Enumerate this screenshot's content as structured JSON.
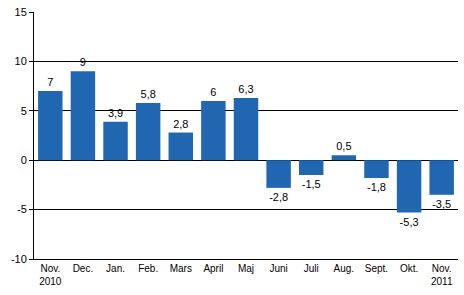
{
  "chart_data": {
    "type": "bar",
    "categories": [
      "Nov.\n2010",
      "Dec.",
      "Jan.",
      "Feb.",
      "Mars",
      "April",
      "Maj",
      "Juni",
      "Juli",
      "Aug.",
      "Sept.",
      "Okt.",
      "Nov.\n2011"
    ],
    "values": [
      7,
      9,
      3.9,
      5.8,
      2.8,
      6,
      6.3,
      -2.8,
      -1.5,
      0.5,
      -1.8,
      -5.3,
      -3.5
    ],
    "value_labels": [
      "7",
      "9",
      "3,9",
      "5,8",
      "2,8",
      "6",
      "6,3",
      "-2,8",
      "-1,5",
      "0,5",
      "-1,8",
      "-5,3",
      "-3,5"
    ],
    "color": "#2166b0",
    "data_labels": true,
    "ylim": [
      -10,
      15
    ],
    "yticks": [
      -10,
      -5,
      0,
      5,
      10,
      15
    ],
    "grid": true
  }
}
